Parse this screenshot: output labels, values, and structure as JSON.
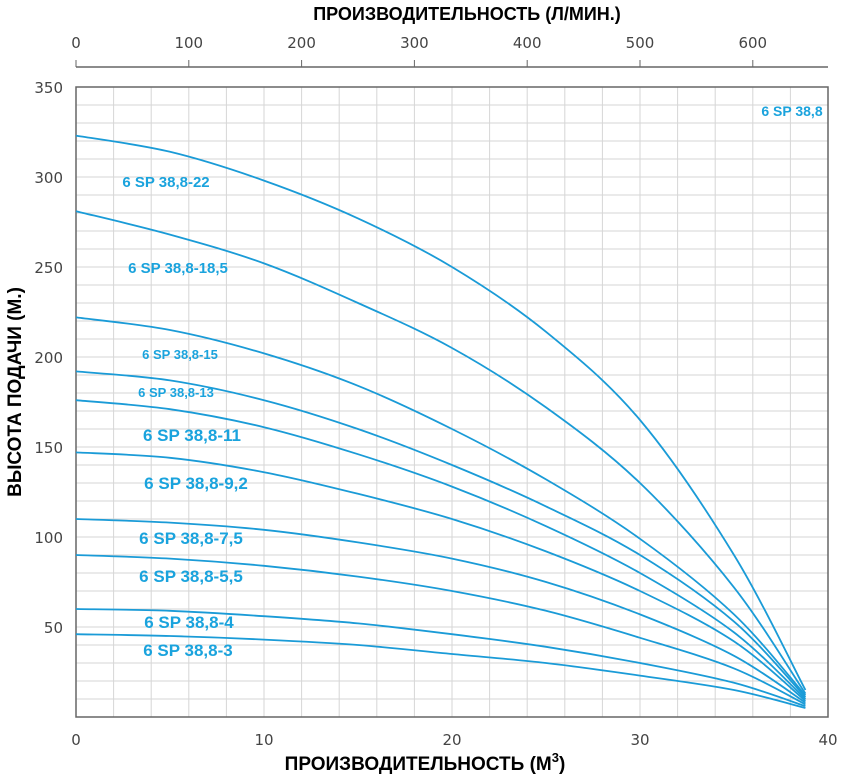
{
  "chart_data": {
    "type": "line",
    "title": "",
    "xlabel": "ПРОИЗВОДИТЕЛЬНОСТЬ (М",
    "xlabel_sup": "3",
    "xlabel_end": ")",
    "x2label": "ПРОИЗВОДИТЕЛЬНОСТЬ (Л/МИН.)",
    "ylabel": "ВЫСОТА ПОДАЧИ (М.)",
    "xlim": [
      0,
      40
    ],
    "x2lim": [
      0,
      666.67
    ],
    "ylim": [
      0,
      350
    ],
    "xticks": [
      "0",
      "10",
      "20",
      "30",
      "40"
    ],
    "x2ticks": [
      "0",
      "100",
      "200",
      "300",
      "400",
      "500",
      "600"
    ],
    "yticks": [
      "50",
      "100",
      "150",
      "200",
      "250",
      "300",
      "350"
    ],
    "grid": true,
    "series_color": "#1a9bd7",
    "label_color": "#1aa3dd",
    "corner_label": "6 SP 38,8",
    "series": [
      {
        "name": "6 SP 38,8-22",
        "x": [
          0,
          5,
          10,
          15,
          20,
          25,
          30,
          35,
          38.8
        ],
        "y": [
          323,
          314,
          298,
          277,
          250,
          214,
          165,
          90,
          15
        ]
      },
      {
        "name": "6 SP 38,8-18,5",
        "x": [
          0,
          5,
          10,
          15,
          20,
          25,
          30,
          35,
          38.8
        ],
        "y": [
          281,
          268,
          252,
          230,
          205,
          172,
          130,
          72,
          13
        ]
      },
      {
        "name": "6 SP 38,8-15",
        "x": [
          0,
          5,
          10,
          15,
          20,
          25,
          30,
          35,
          38.8
        ],
        "y": [
          222,
          215,
          202,
          184,
          160,
          132,
          99,
          57,
          12
        ]
      },
      {
        "name": "6 SP 38,8-13",
        "x": [
          0,
          5,
          10,
          15,
          20,
          25,
          30,
          35,
          38.8
        ],
        "y": [
          192,
          187,
          176,
          160,
          140,
          117,
          90,
          53,
          11
        ]
      },
      {
        "name": "6 SP 38,8-11",
        "x": [
          0,
          5,
          10,
          15,
          20,
          25,
          30,
          35,
          38.8
        ],
        "y": [
          176,
          171,
          161,
          146,
          128,
          106,
          80,
          47,
          10
        ]
      },
      {
        "name": "6 SP 38,8-9,2",
        "x": [
          0,
          5,
          10,
          15,
          20,
          25,
          30,
          35,
          38.8
        ],
        "y": [
          147,
          144,
          136,
          124,
          110,
          92,
          70,
          42,
          9
        ]
      },
      {
        "name": "6 SP 38,8-7,5",
        "x": [
          0,
          5,
          10,
          15,
          20,
          25,
          30,
          35,
          38.8
        ],
        "y": [
          110,
          108,
          104,
          97,
          88,
          75,
          57,
          34,
          8
        ]
      },
      {
        "name": "6 SP 38,8-5,5",
        "x": [
          0,
          5,
          10,
          15,
          20,
          25,
          30,
          35,
          38.8
        ],
        "y": [
          90,
          88,
          84,
          78,
          70,
          59,
          44,
          27,
          7
        ]
      },
      {
        "name": "6 SP 38,8-4",
        "x": [
          0,
          5,
          10,
          15,
          20,
          25,
          30,
          35,
          38.8
        ],
        "y": [
          60,
          59,
          56,
          52,
          46,
          39,
          30,
          19,
          6
        ]
      },
      {
        "name": "6 SP 38,8-3",
        "x": [
          0,
          5,
          10,
          15,
          20,
          25,
          30,
          35,
          38.8
        ],
        "y": [
          46,
          45,
          43,
          40,
          35,
          30,
          23,
          15,
          5
        ]
      }
    ]
  }
}
